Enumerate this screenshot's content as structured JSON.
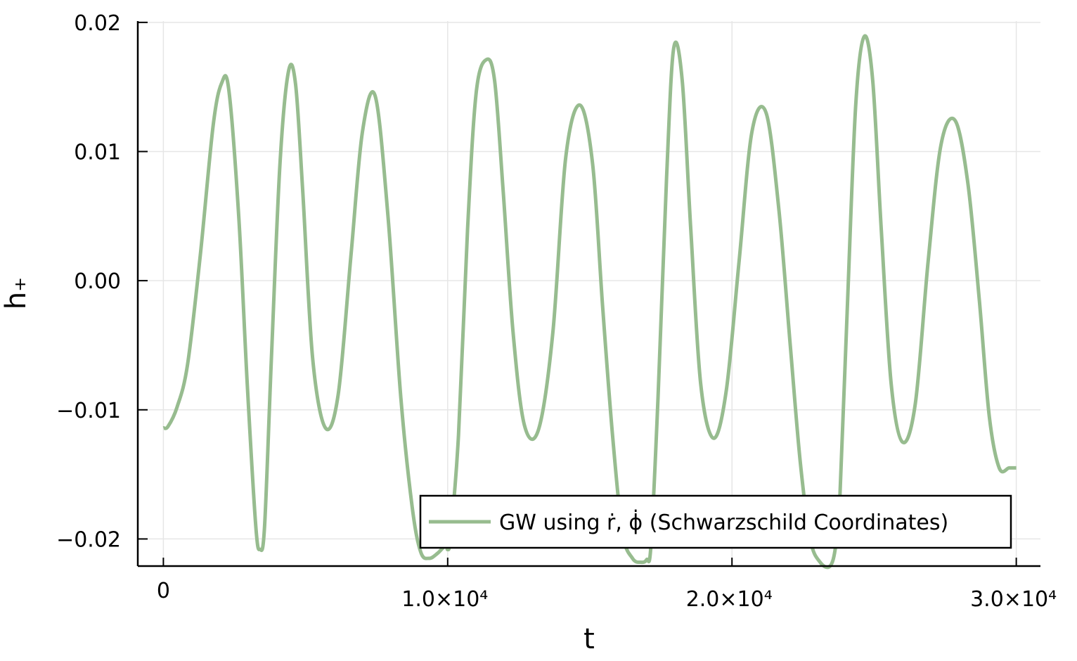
{
  "chart_data": {
    "type": "line",
    "title": "",
    "xlabel": "t",
    "ylabel": "h₊",
    "xlim": [
      -900,
      30850
    ],
    "ylim": [
      -0.0221,
      0.0201
    ],
    "grid": true,
    "legend_position": "bottom-right",
    "x_ticks": [
      {
        "value": 0,
        "label": "0"
      },
      {
        "value": 10000,
        "label": "1.0×10⁴"
      },
      {
        "value": 20000,
        "label": "2.0×10⁴"
      },
      {
        "value": 30000,
        "label": "3.0×10⁴"
      }
    ],
    "y_ticks": [
      {
        "value": 0.02,
        "label": "0.02"
      },
      {
        "value": 0.01,
        "label": "0.01"
      },
      {
        "value": 0.0,
        "label": "0.00"
      },
      {
        "value": -0.01,
        "label": "−0.01"
      },
      {
        "value": -0.02,
        "label": "−0.02"
      }
    ],
    "series": [
      {
        "name": "GW using ṙ, ϕ̇ (Schwarzschild Coordinates)",
        "color": "#97bc8f",
        "x": [
          0,
          160,
          480,
          850,
          1300,
          1750,
          2050,
          2300,
          2650,
          2950,
          3250,
          3400,
          3560,
          3800,
          4100,
          4400,
          4650,
          4900,
          5250,
          5700,
          6150,
          6600,
          7000,
          7450,
          7900,
          8350,
          8750,
          9050,
          9350,
          9650,
          9930,
          10000,
          10100,
          10380,
          10700,
          11000,
          11350,
          11650,
          11950,
          12300,
          12700,
          13200,
          13700,
          14150,
          14650,
          15100,
          15450,
          15800,
          16150,
          16500,
          16800,
          17000,
          17150,
          17400,
          17700,
          17950,
          18250,
          18550,
          18900,
          19350,
          19800,
          20250,
          20700,
          21200,
          21650,
          22050,
          22400,
          22750,
          23100,
          23450,
          23650,
          23800,
          24050,
          24350,
          24650,
          24950,
          25250,
          25600,
          26000,
          26450,
          26900,
          27350,
          27850,
          28300,
          28700,
          29050,
          29400,
          29750,
          30000
        ],
        "y": [
          -0.0114,
          -0.0113,
          -0.0098,
          -0.0065,
          0.002,
          0.012,
          0.0153,
          0.0148,
          0.005,
          -0.008,
          -0.019,
          -0.0208,
          -0.019,
          -0.006,
          0.009,
          0.0162,
          0.0152,
          0.007,
          -0.006,
          -0.0114,
          -0.0088,
          0.002,
          0.0115,
          0.0143,
          0.005,
          -0.009,
          -0.0175,
          -0.021,
          -0.0215,
          -0.0211,
          -0.0205,
          -0.0208,
          -0.0198,
          -0.012,
          0.004,
          0.0145,
          0.0171,
          0.0155,
          0.007,
          -0.004,
          -0.0112,
          -0.0115,
          -0.004,
          0.0095,
          0.0136,
          0.009,
          -0.002,
          -0.012,
          -0.0195,
          -0.0215,
          -0.0218,
          -0.0216,
          -0.0205,
          -0.009,
          0.008,
          0.018,
          0.0155,
          0.004,
          -0.008,
          -0.0122,
          -0.0085,
          0.0015,
          0.0115,
          0.013,
          0.0055,
          -0.005,
          -0.014,
          -0.02,
          -0.0218,
          -0.0221,
          -0.0205,
          -0.0165,
          -0.0025,
          0.0135,
          0.0189,
          0.0155,
          0.004,
          -0.008,
          -0.0125,
          -0.0095,
          0.0015,
          0.0105,
          0.0124,
          0.0075,
          -0.0015,
          -0.0105,
          -0.0145,
          -0.0145,
          -0.0145
        ]
      }
    ]
  }
}
